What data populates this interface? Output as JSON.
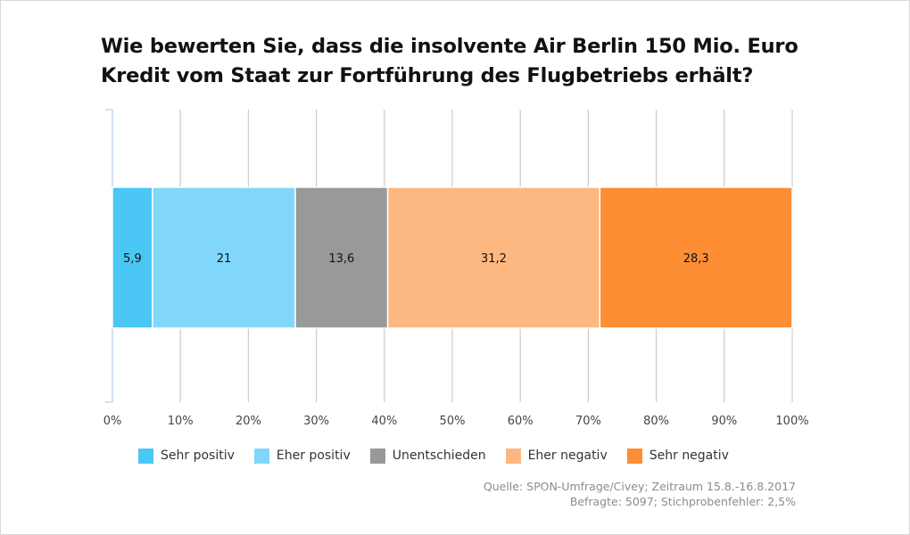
{
  "title": {
    "line1": "Wie bewerten Sie, dass die insolvente Air Berlin 150 Mio. Euro",
    "line2": "Kredit vom Staat zur Fortführung des Flugbetriebs erhält?"
  },
  "chart_data": {
    "type": "bar",
    "orientation": "horizontal",
    "stacked": true,
    "title": "Wie bewerten Sie, dass die insolvente Air Berlin 150 Mio. Euro Kredit vom Staat zur Fortführung des Flugbetriebs erhält?",
    "xlim": [
      0,
      100
    ],
    "xticks": [
      "0%",
      "10%",
      "20%",
      "30%",
      "40%",
      "50%",
      "60%",
      "70%",
      "80%",
      "90%",
      "100%"
    ],
    "grid": true,
    "legend_position": "bottom",
    "series": [
      {
        "name": "Sehr positiv",
        "value": 5.9,
        "label": "5,9",
        "color": "#4ac7f4"
      },
      {
        "name": "Eher positiv",
        "value": 21,
        "label": "21",
        "color": "#80d7f9"
      },
      {
        "name": "Unentschieden",
        "value": 13.6,
        "label": "13,6",
        "color": "#999999"
      },
      {
        "name": "Eher negativ",
        "value": 31.2,
        "label": "31,2",
        "color": "#fdb882"
      },
      {
        "name": "Sehr negativ",
        "value": 28.3,
        "label": "28,3",
        "color": "#fd8e34"
      }
    ]
  },
  "source": {
    "line1": "Quelle: SPON-Umfrage/Civey; Zeitraum 15.8.-16.8.2017",
    "line2": "Befragte: 5097; Stichprobenfehler: 2,5%"
  }
}
